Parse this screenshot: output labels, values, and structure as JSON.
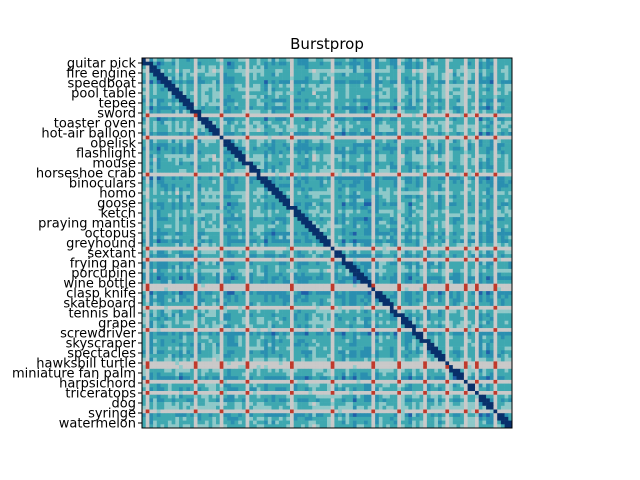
{
  "chart_data": {
    "type": "heatmap",
    "title": "Burstprop",
    "n": 100,
    "y_tick_labels": [
      "guitar pick",
      "fire engine",
      "speedboat",
      "pool table",
      "tepee",
      "sword",
      "toaster oven",
      "hot-air balloon",
      "obelisk",
      "flashlight",
      "mouse",
      "horseshoe crab",
      "binoculars",
      "homo",
      "goose",
      "ketch",
      "praying mantis",
      "octopus",
      "greyhound",
      "sextant",
      "frying pan",
      "porcupine",
      "wine bottle",
      "clasp knife",
      "skateboard",
      "tennis ball",
      "grape",
      "screwdriver",
      "skyscraper",
      "spectacles",
      "hawksbill turtle",
      "miniature fan palm",
      "harpsichord",
      "triceratops",
      "dog",
      "syringe",
      "watermelon"
    ],
    "x_tick_labels": [],
    "diagonal_value": "high",
    "colormap": [
      "#08306b",
      "#1f5fa8",
      "#2a8fb0",
      "#3fa8b0",
      "#8ec9c9",
      "#c9c9c9",
      "#d98c8c",
      "#c0392b"
    ],
    "highlight_rows": [
      15,
      21,
      31,
      51,
      54,
      61,
      62,
      67,
      73,
      82,
      83,
      87,
      90,
      95
    ],
    "highlight_cols": [
      1,
      14,
      21,
      28,
      40,
      51,
      62,
      69,
      76,
      82,
      87,
      90,
      95
    ]
  }
}
